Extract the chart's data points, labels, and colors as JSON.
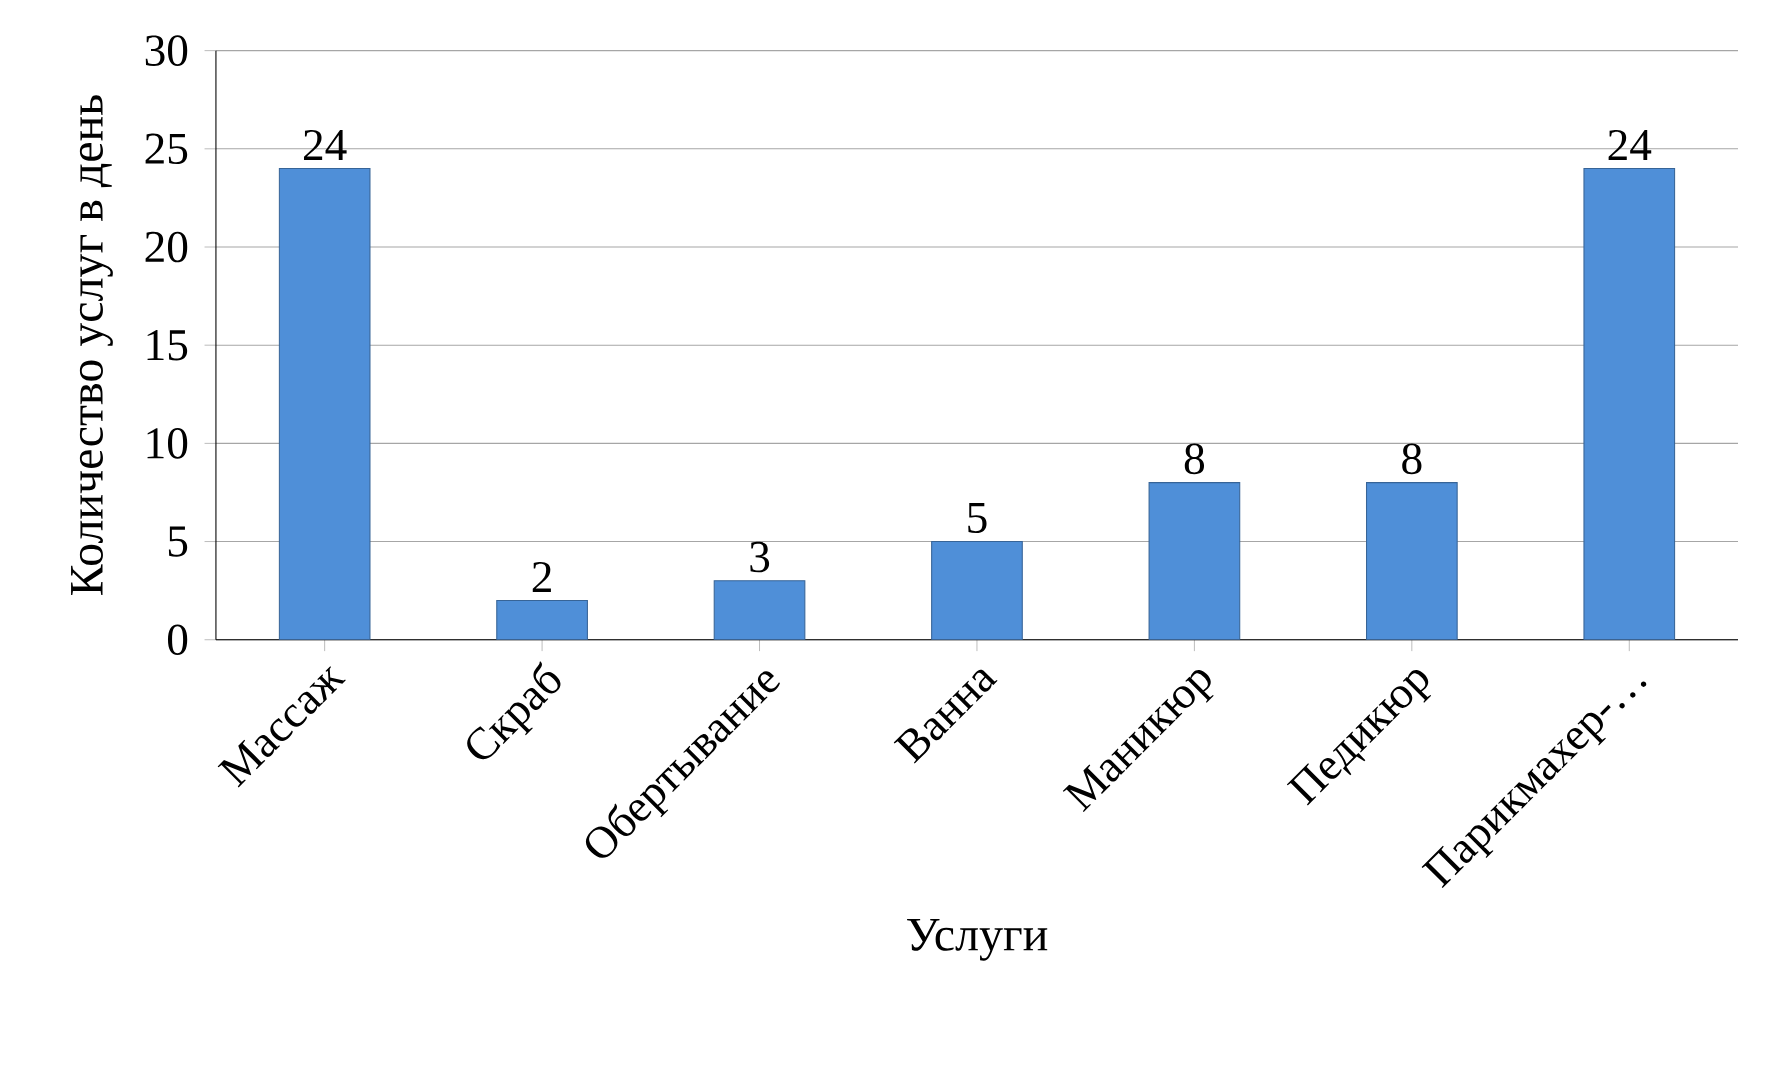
{
  "chart_data": {
    "type": "bar",
    "xlabel": "Услуги",
    "ylabel": "Количество услуг в день",
    "categories": [
      "Массаж",
      "Скраб",
      "Обертывание",
      "Ванна",
      "Маникюр",
      "Педикюр",
      "Парикмахер-…"
    ],
    "values": [
      24,
      2,
      3,
      5,
      8,
      8,
      24
    ],
    "color": "#4f8fd8",
    "ylim": [
      0,
      30
    ],
    "yticks": [
      0,
      5,
      10,
      15,
      20,
      25,
      30
    ],
    "grid": "y",
    "data_labels": true
  }
}
